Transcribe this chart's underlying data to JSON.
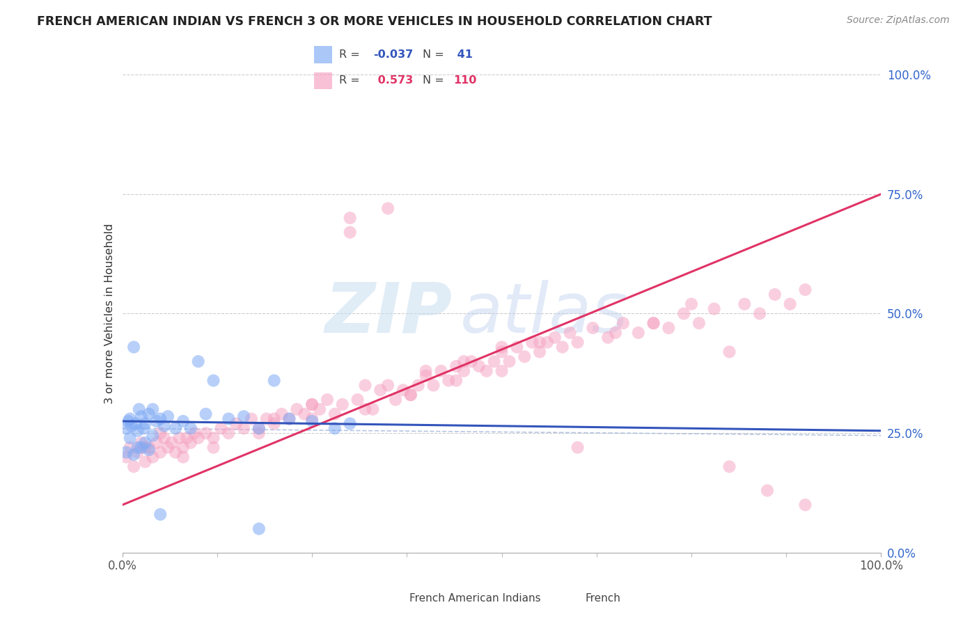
{
  "title": "FRENCH AMERICAN INDIAN VS FRENCH 3 OR MORE VEHICLES IN HOUSEHOLD CORRELATION CHART",
  "source": "Source: ZipAtlas.com",
  "ylabel": "3 or more Vehicles in Household",
  "ytick_values": [
    0,
    25,
    50,
    75,
    100
  ],
  "legend_blue_R": "-0.037",
  "legend_blue_N": "41",
  "legend_pink_R": "0.573",
  "legend_pink_N": "110",
  "blue_color": "#7faaf5",
  "pink_color": "#f5a0c0",
  "blue_line_color": "#3355bb",
  "pink_line_color": "#e03366",
  "blue_line_y0": 27.5,
  "blue_line_y1": 25.5,
  "pink_line_y0": 10.0,
  "pink_line_y1": 75.0,
  "blue_dash_y0": 26.0,
  "blue_dash_y1": 24.5,
  "xlim": [
    0,
    100
  ],
  "ylim": [
    0,
    100
  ],
  "figwidth": 14.06,
  "figheight": 8.92,
  "dpi": 100,
  "watermark_zip": "ZIP",
  "watermark_atlas": "atlas",
  "blue_x": [
    0.5,
    0.8,
    1.0,
    1.2,
    1.5,
    1.8,
    2.0,
    2.2,
    2.5,
    2.8,
    3.0,
    3.5,
    4.0,
    4.5,
    5.0,
    5.5,
    6.0,
    7.0,
    8.0,
    9.0,
    10.0,
    11.0,
    12.0,
    14.0,
    16.0,
    18.0,
    20.0,
    22.0,
    25.0,
    28.0,
    1.0,
    2.0,
    3.0,
    4.0,
    0.5,
    1.5,
    2.5,
    3.5,
    5.0,
    18.0,
    30.0
  ],
  "blue_y": [
    26.0,
    27.5,
    28.0,
    26.5,
    43.0,
    27.0,
    25.5,
    30.0,
    28.5,
    26.0,
    27.0,
    29.0,
    30.0,
    27.5,
    28.0,
    26.5,
    28.5,
    26.0,
    27.5,
    26.0,
    40.0,
    29.0,
    36.0,
    28.0,
    28.5,
    26.0,
    36.0,
    28.0,
    27.5,
    26.0,
    24.0,
    22.0,
    23.0,
    24.5,
    21.0,
    20.5,
    22.0,
    21.5,
    8.0,
    5.0,
    27.0
  ],
  "pink_x": [
    0.5,
    1.0,
    1.5,
    2.0,
    2.5,
    3.0,
    3.5,
    4.0,
    4.5,
    5.0,
    5.5,
    6.0,
    6.5,
    7.0,
    7.5,
    8.0,
    8.5,
    9.0,
    9.5,
    10.0,
    11.0,
    12.0,
    13.0,
    14.0,
    15.0,
    16.0,
    17.0,
    18.0,
    19.0,
    20.0,
    21.0,
    22.0,
    23.0,
    24.0,
    25.0,
    26.0,
    27.0,
    28.0,
    29.0,
    30.0,
    31.0,
    32.0,
    33.0,
    34.0,
    35.0,
    36.0,
    37.0,
    38.0,
    39.0,
    40.0,
    41.0,
    42.0,
    43.0,
    44.0,
    45.0,
    46.0,
    47.0,
    48.0,
    49.0,
    50.0,
    51.0,
    52.0,
    53.0,
    54.0,
    55.0,
    56.0,
    57.0,
    58.0,
    59.0,
    60.0,
    62.0,
    64.0,
    66.0,
    68.0,
    70.0,
    72.0,
    74.0,
    76.0,
    78.0,
    80.0,
    82.0,
    84.0,
    86.0,
    88.0,
    90.0,
    20.0,
    25.0,
    30.0,
    35.0,
    40.0,
    45.0,
    50.0,
    55.0,
    60.0,
    65.0,
    70.0,
    75.0,
    80.0,
    85.0,
    90.0,
    3.0,
    5.0,
    8.0,
    12.0,
    18.0,
    25.0,
    32.0,
    38.0,
    44.0,
    50.0
  ],
  "pink_y": [
    20.0,
    22.0,
    18.0,
    21.0,
    23.0,
    19.0,
    22.0,
    20.0,
    23.0,
    21.0,
    24.0,
    22.0,
    23.0,
    21.0,
    24.0,
    22.0,
    24.0,
    23.0,
    25.0,
    24.0,
    25.0,
    24.0,
    26.0,
    25.0,
    27.0,
    26.0,
    28.0,
    26.0,
    28.0,
    27.0,
    29.0,
    28.0,
    30.0,
    29.0,
    31.0,
    30.0,
    32.0,
    29.0,
    31.0,
    70.0,
    32.0,
    35.0,
    30.0,
    34.0,
    72.0,
    32.0,
    34.0,
    33.0,
    35.0,
    37.0,
    35.0,
    38.0,
    36.0,
    39.0,
    38.0,
    40.0,
    39.0,
    38.0,
    40.0,
    42.0,
    40.0,
    43.0,
    41.0,
    44.0,
    42.0,
    44.0,
    45.0,
    43.0,
    46.0,
    44.0,
    47.0,
    45.0,
    48.0,
    46.0,
    48.0,
    47.0,
    50.0,
    48.0,
    51.0,
    42.0,
    52.0,
    50.0,
    54.0,
    52.0,
    55.0,
    28.0,
    31.0,
    67.0,
    35.0,
    38.0,
    40.0,
    43.0,
    44.0,
    22.0,
    46.0,
    48.0,
    52.0,
    18.0,
    13.0,
    10.0,
    22.0,
    25.0,
    20.0,
    22.0,
    25.0,
    28.0,
    30.0,
    33.0,
    36.0,
    38.0
  ]
}
